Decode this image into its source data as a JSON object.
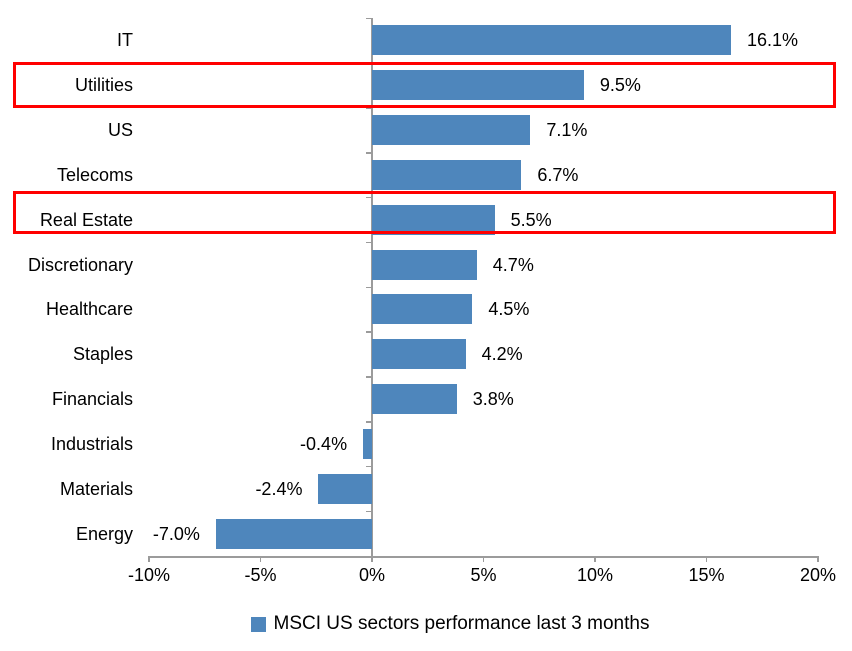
{
  "chart_data": {
    "type": "bar",
    "orientation": "horizontal",
    "title": "",
    "categories": [
      "IT",
      "Utilities",
      "US",
      "Telecoms",
      "Real Estate",
      "Discretionary",
      "Healthcare",
      "Staples",
      "Financials",
      "Industrials",
      "Materials",
      "Energy"
    ],
    "values": [
      16.1,
      9.5,
      7.1,
      6.7,
      5.5,
      4.7,
      4.5,
      4.2,
      3.8,
      -0.4,
      -2.4,
      -7.0
    ],
    "display_labels": [
      "16.1%",
      "9.5%",
      "7.1%",
      "6.7%",
      "5.5%",
      "4.7%",
      "4.5%",
      "4.2%",
      "3.8%",
      "-0.4%",
      "-2.4%",
      "-7.0%"
    ],
    "xlim": [
      -10,
      20
    ],
    "x_ticks": [
      {
        "value": -10,
        "label": "-10%"
      },
      {
        "value": -5,
        "label": "-5%"
      },
      {
        "value": 0,
        "label": "0%"
      },
      {
        "value": 5,
        "label": "5%"
      },
      {
        "value": 10,
        "label": "10%"
      },
      {
        "value": 15,
        "label": "15%"
      },
      {
        "value": 20,
        "label": "20%"
      }
    ],
    "grid": false,
    "legend": {
      "position": "bottom",
      "label": "MSCI US sectors performance last 3 months"
    },
    "highlighted_categories": [
      "Utilities",
      "Real Estate"
    ],
    "colors": {
      "bar": "#4E86BC",
      "highlight_border": "#FF0000",
      "axis": "#9B9B9B",
      "text": "#000000",
      "background": "#FFFFFF"
    }
  }
}
